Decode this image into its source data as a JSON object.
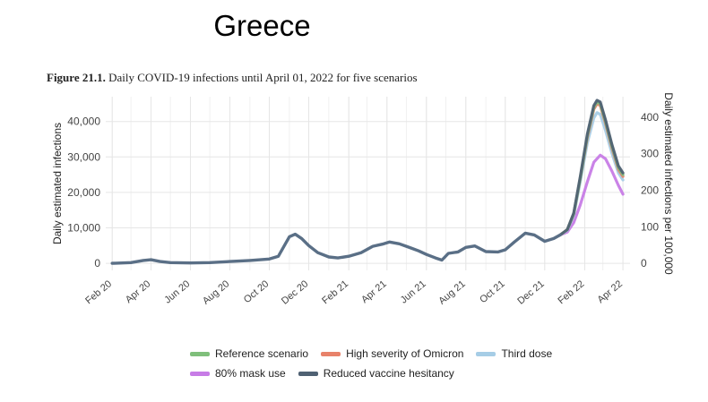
{
  "header": {
    "country": "Greece",
    "figure_label": "Figure 21.1.",
    "figure_text": "Daily COVID-19 infections until April 01, 2022 for five scenarios"
  },
  "chart_data": {
    "type": "line",
    "ylabel": "Daily estimated infections",
    "y2label": "Daily estimated infections per 100,000",
    "ylim": [
      -2000,
      47000
    ],
    "yticks": [
      0,
      10000,
      20000,
      30000,
      40000
    ],
    "ytick_labels": [
      "0",
      "10,000",
      "20,000",
      "30,000",
      "40,000"
    ],
    "y2ticks": [
      0,
      100,
      200,
      300,
      400
    ],
    "y2_per_y": 0.0097,
    "x_range": [
      "2020-01-22",
      "2022-04-12"
    ],
    "xtick_labels": [
      {
        "date": "2020-02-01",
        "label": "Feb 20"
      },
      {
        "date": "2020-04-01",
        "label": "Apr 20"
      },
      {
        "date": "2020-06-01",
        "label": "Jun 20"
      },
      {
        "date": "2020-08-01",
        "label": "Aug 20"
      },
      {
        "date": "2020-10-01",
        "label": "Oct 20"
      },
      {
        "date": "2020-12-01",
        "label": "Dec 20"
      },
      {
        "date": "2021-02-01",
        "label": "Feb 21"
      },
      {
        "date": "2021-04-01",
        "label": "Apr 21"
      },
      {
        "date": "2021-06-01",
        "label": "Jun 21"
      },
      {
        "date": "2021-08-01",
        "label": "Aug 21"
      },
      {
        "date": "2021-10-01",
        "label": "Oct 21"
      },
      {
        "date": "2021-12-01",
        "label": "Dec 21"
      },
      {
        "date": "2022-02-01",
        "label": "Feb 22"
      },
      {
        "date": "2022-04-01",
        "label": "Apr 22"
      }
    ],
    "grid": true,
    "legend_position": "bottom",
    "history": {
      "x": [
        "2020-02-01",
        "2020-03-01",
        "2020-03-20",
        "2020-04-01",
        "2020-04-15",
        "2020-05-01",
        "2020-06-01",
        "2020-07-01",
        "2020-08-01",
        "2020-09-01",
        "2020-10-01",
        "2020-10-15",
        "2020-11-01",
        "2020-11-10",
        "2020-11-20",
        "2020-12-01",
        "2020-12-15",
        "2021-01-01",
        "2021-01-15",
        "2021-02-01",
        "2021-02-20",
        "2021-03-10",
        "2021-03-25",
        "2021-04-05",
        "2021-04-20",
        "2021-05-01",
        "2021-05-10",
        "2021-05-20",
        "2021-06-01",
        "2021-06-15",
        "2021-06-25",
        "2021-07-05",
        "2021-07-20",
        "2021-08-01",
        "2021-08-15",
        "2021-09-01",
        "2021-09-20",
        "2021-10-01",
        "2021-10-15",
        "2021-11-01",
        "2021-11-15",
        "2021-12-01",
        "2021-12-15",
        "2021-12-25"
      ],
      "y": [
        0,
        200,
        800,
        1000,
        500,
        200,
        100,
        200,
        500,
        800,
        1200,
        2000,
        7500,
        8200,
        7000,
        5000,
        3000,
        1800,
        1500,
        2000,
        3000,
        4800,
        5400,
        6000,
        5500,
        4800,
        4200,
        3500,
        2500,
        1500,
        900,
        2800,
        3200,
        4500,
        4900,
        3300,
        3200,
        3800,
        6000,
        8500,
        8000,
        6200,
        7000,
        8000
      ]
    },
    "series": [
      {
        "name": "Reference scenario",
        "color": "#7fbf7b",
        "x": [
          "2021-12-25",
          "2022-01-05",
          "2022-01-15",
          "2022-01-25",
          "2022-02-05",
          "2022-02-15",
          "2022-02-20",
          "2022-02-25",
          "2022-03-05",
          "2022-03-15",
          "2022-03-25",
          "2022-04-01"
        ],
        "y": [
          8000,
          9500,
          14000,
          24000,
          36000,
          44000,
          45500,
          45000,
          40000,
          33000,
          27000,
          25000
        ]
      },
      {
        "name": "High severity of Omicron",
        "color": "#e8826a",
        "x": [
          "2021-12-25",
          "2022-01-05",
          "2022-01-15",
          "2022-01-25",
          "2022-02-05",
          "2022-02-15",
          "2022-02-20",
          "2022-02-25",
          "2022-03-05",
          "2022-03-15",
          "2022-03-25",
          "2022-04-01"
        ],
        "y": [
          8000,
          9500,
          14000,
          24000,
          35500,
          43500,
          45000,
          44500,
          39500,
          32500,
          26500,
          24500
        ]
      },
      {
        "name": "Third dose",
        "color": "#a6cde6",
        "x": [
          "2021-12-25",
          "2022-01-05",
          "2022-01-15",
          "2022-01-25",
          "2022-02-05",
          "2022-02-15",
          "2022-02-20",
          "2022-02-25",
          "2022-03-05",
          "2022-03-15",
          "2022-03-25",
          "2022-04-01"
        ],
        "y": [
          8000,
          9300,
          13500,
          23000,
          34000,
          41000,
          42500,
          42000,
          37500,
          31000,
          25500,
          23500
        ]
      },
      {
        "name": "80% mask use",
        "color": "#c77ce6",
        "x": [
          "2021-12-25",
          "2022-01-05",
          "2022-01-15",
          "2022-01-25",
          "2022-02-05",
          "2022-02-15",
          "2022-02-25",
          "2022-03-05",
          "2022-03-15",
          "2022-03-25",
          "2022-04-01"
        ],
        "y": [
          8000,
          8800,
          11500,
          16500,
          23000,
          28500,
          30500,
          29500,
          26000,
          22000,
          19500
        ]
      },
      {
        "name": "Reduced vaccine hesitancy",
        "color": "#4f6173",
        "x": [
          "2021-12-25",
          "2022-01-05",
          "2022-01-15",
          "2022-01-25",
          "2022-02-05",
          "2022-02-15",
          "2022-02-20",
          "2022-02-25",
          "2022-03-05",
          "2022-03-15",
          "2022-03-25",
          "2022-04-01"
        ],
        "y": [
          8000,
          9500,
          14200,
          24500,
          36500,
          44500,
          46000,
          45500,
          40500,
          33500,
          27500,
          25500
        ]
      }
    ],
    "legend_rows": [
      [
        "Reference scenario",
        "High severity of Omicron",
        "Third dose"
      ],
      [
        "80% mask use",
        "Reduced vaccine hesitancy"
      ]
    ]
  }
}
